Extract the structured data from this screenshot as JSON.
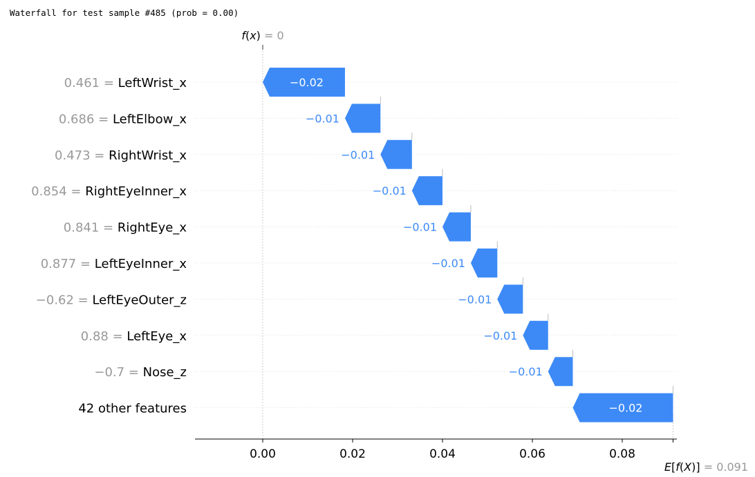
{
  "caption": "Waterfall for test sample #485 (prob = 0.00)",
  "colors": {
    "negative": "#3d8af7",
    "positive": "#ff0d57",
    "muted_text": "#999999",
    "text": "#000000",
    "guide": "#cccccc"
  },
  "chart_data": {
    "type": "waterfall",
    "fx": {
      "label": "f(x)",
      "value": "0",
      "x": 0.0
    },
    "base": {
      "label": "E[f(X)]",
      "value": "0.091",
      "x": 0.0913
    },
    "xlim": [
      -0.015,
      0.092
    ],
    "xticks": [
      0.0,
      0.02,
      0.04,
      0.06,
      0.08
    ],
    "xtick_labels": [
      "0.00",
      "0.02",
      "0.04",
      "0.06",
      "0.08"
    ],
    "rows": [
      {
        "value": "0.461",
        "feature": "LeftWrist_x",
        "contribution": -0.0183,
        "label": "−0.02",
        "label_inside": true
      },
      {
        "value": "0.686",
        "feature": "LeftElbow_x",
        "contribution": -0.0079,
        "label": "−0.01",
        "label_inside": false
      },
      {
        "value": "0.473",
        "feature": "RightWrist_x",
        "contribution": -0.007,
        "label": "−0.01",
        "label_inside": false
      },
      {
        "value": "0.854",
        "feature": "RightEyeInner_x",
        "contribution": -0.0068,
        "label": "−0.01",
        "label_inside": false
      },
      {
        "value": "0.841",
        "feature": "RightEye_x",
        "contribution": -0.0063,
        "label": "−0.01",
        "label_inside": false
      },
      {
        "value": "0.877",
        "feature": "LeftEyeInner_x",
        "contribution": -0.0059,
        "label": "−0.01",
        "label_inside": false
      },
      {
        "value": "−0.62",
        "feature": "LeftEyeOuter_z",
        "contribution": -0.0057,
        "label": "−0.01",
        "label_inside": false
      },
      {
        "value": "0.88",
        "feature": "LeftEye_x",
        "contribution": -0.0056,
        "label": "−0.01",
        "label_inside": false
      },
      {
        "value": "−0.7",
        "feature": "Nose_z",
        "contribution": -0.0055,
        "label": "−0.01",
        "label_inside": false
      },
      {
        "value": "",
        "feature": "42 other features",
        "contribution": -0.0223,
        "label": "−0.02",
        "label_inside": true
      }
    ]
  }
}
